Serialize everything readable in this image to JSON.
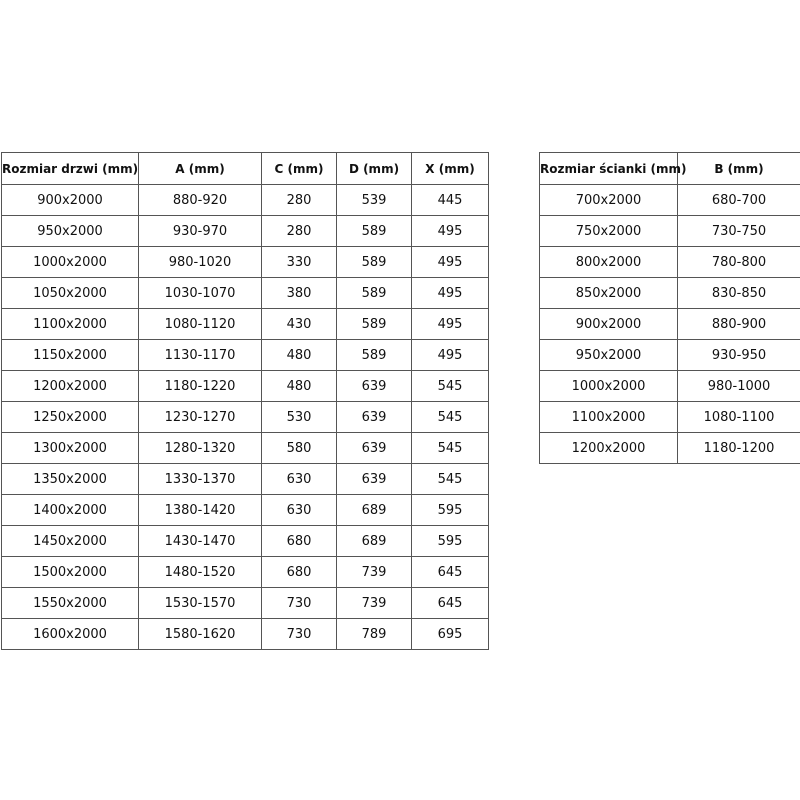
{
  "doors_table": {
    "headers": [
      "Rozmiar drzwi (mm)",
      "A (mm)",
      "C (mm)",
      "D (mm)",
      "X (mm)"
    ],
    "rows": [
      [
        "900x2000",
        "880-920",
        "280",
        "539",
        "445"
      ],
      [
        "950x2000",
        "930-970",
        "280",
        "589",
        "495"
      ],
      [
        "1000x2000",
        "980-1020",
        "330",
        "589",
        "495"
      ],
      [
        "1050x2000",
        "1030-1070",
        "380",
        "589",
        "495"
      ],
      [
        "1100x2000",
        "1080-1120",
        "430",
        "589",
        "495"
      ],
      [
        "1150x2000",
        "1130-1170",
        "480",
        "589",
        "495"
      ],
      [
        "1200x2000",
        "1180-1220",
        "480",
        "639",
        "545"
      ],
      [
        "1250x2000",
        "1230-1270",
        "530",
        "639",
        "545"
      ],
      [
        "1300x2000",
        "1280-1320",
        "580",
        "639",
        "545"
      ],
      [
        "1350x2000",
        "1330-1370",
        "630",
        "639",
        "545"
      ],
      [
        "1400x2000",
        "1380-1420",
        "630",
        "689",
        "595"
      ],
      [
        "1450x2000",
        "1430-1470",
        "680",
        "689",
        "595"
      ],
      [
        "1500x2000",
        "1480-1520",
        "680",
        "739",
        "645"
      ],
      [
        "1550x2000",
        "1530-1570",
        "730",
        "739",
        "645"
      ],
      [
        "1600x2000",
        "1580-1620",
        "730",
        "789",
        "695"
      ]
    ]
  },
  "wall_table": {
    "headers": [
      "Rozmiar ścianki (mm)",
      "B (mm)"
    ],
    "rows": [
      [
        "700x2000",
        "680-700"
      ],
      [
        "750x2000",
        "730-750"
      ],
      [
        "800x2000",
        "780-800"
      ],
      [
        "850x2000",
        "830-850"
      ],
      [
        "900x2000",
        "880-900"
      ],
      [
        "950x2000",
        "930-950"
      ],
      [
        "1000x2000",
        "980-1000"
      ],
      [
        "1100x2000",
        "1080-1100"
      ],
      [
        "1200x2000",
        "1180-1200"
      ]
    ]
  }
}
